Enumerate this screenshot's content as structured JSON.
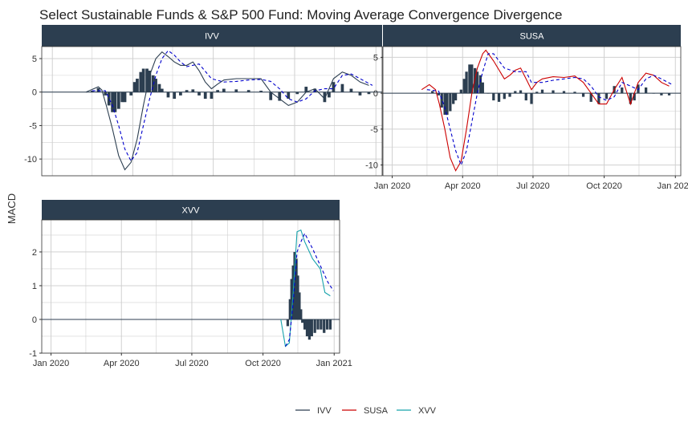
{
  "chart_data": {
    "type": "line",
    "title": "Select Sustainable Funds & S&P 500 Fund: Moving Average Convergence Divergence",
    "ylabel": "MACD",
    "xlabel": "",
    "x_ticks": [
      "Jan 2020",
      "Apr 2020",
      "Jul 2020",
      "Oct 2020",
      "Jan 2021"
    ],
    "grid": true,
    "legend": {
      "position": "bottom",
      "entries": [
        {
          "name": "IVV",
          "color": "#2c3e50"
        },
        {
          "name": "SUSA",
          "color": "#cc0000"
        },
        {
          "name": "XVV",
          "color": "#18a3ac"
        }
      ]
    },
    "colors": {
      "strip": "#2c3e50",
      "signal": "#0000cc",
      "histogram": "#2c3e50",
      "grid": "#d0d0d0",
      "zero": "#2c3e50"
    },
    "panels": [
      {
        "name": "IVV",
        "color": "#2c3e50",
        "y_ticks": [
          -10,
          -5,
          0,
          5
        ],
        "ylim": [
          -12.5,
          6.8
        ],
        "macd": [
          [
            "2020-02-08",
            0
          ],
          [
            "2020-02-15",
            0.4
          ],
          [
            "2020-02-22",
            0.8
          ],
          [
            "2020-02-26",
            0.3
          ],
          [
            "2020-03-02",
            -2
          ],
          [
            "2020-03-09",
            -5.5
          ],
          [
            "2020-03-16",
            -9.5
          ],
          [
            "2020-03-23",
            -11.6
          ],
          [
            "2020-03-30",
            -10.5
          ],
          [
            "2020-04-06",
            -7
          ],
          [
            "2020-04-13",
            -2
          ],
          [
            "2020-04-20",
            2.5
          ],
          [
            "2020-04-27",
            5
          ],
          [
            "2020-05-04",
            6
          ],
          [
            "2020-05-11",
            5.3
          ],
          [
            "2020-05-18",
            4.5
          ],
          [
            "2020-05-25",
            4
          ],
          [
            "2020-06-01",
            4
          ],
          [
            "2020-06-08",
            4.5
          ],
          [
            "2020-06-15",
            3.2
          ],
          [
            "2020-06-22",
            1.5
          ],
          [
            "2020-06-29",
            0.5
          ],
          [
            "2020-07-06",
            1.2
          ],
          [
            "2020-07-13",
            1.8
          ],
          [
            "2020-07-27",
            2
          ],
          [
            "2020-08-10",
            2
          ],
          [
            "2020-08-24",
            2
          ],
          [
            "2020-09-04",
            0
          ],
          [
            "2020-09-14",
            -1
          ],
          [
            "2020-09-24",
            -2
          ],
          [
            "2020-10-04",
            -1.5
          ],
          [
            "2020-10-14",
            0
          ],
          [
            "2020-10-24",
            0.5
          ],
          [
            "2020-11-04",
            -1
          ],
          [
            "2020-11-14",
            2
          ],
          [
            "2020-11-24",
            3
          ],
          [
            "2020-12-04",
            2.5
          ],
          [
            "2020-12-14",
            1.5
          ],
          [
            "2020-12-24",
            1
          ]
        ],
        "signal": [
          [
            "2020-02-15",
            0.2
          ],
          [
            "2020-03-01",
            0.2
          ],
          [
            "2020-03-09",
            -2
          ],
          [
            "2020-03-16",
            -5
          ],
          [
            "2020-03-23",
            -8.5
          ],
          [
            "2020-03-30",
            -10.3
          ],
          [
            "2020-04-06",
            -9
          ],
          [
            "2020-04-13",
            -5
          ],
          [
            "2020-04-20",
            -1
          ],
          [
            "2020-04-27",
            2.5
          ],
          [
            "2020-05-04",
            5
          ],
          [
            "2020-05-11",
            6.2
          ],
          [
            "2020-05-18",
            5.5
          ],
          [
            "2020-05-25",
            4.5
          ],
          [
            "2020-06-01",
            3.8
          ],
          [
            "2020-06-15",
            4.2
          ],
          [
            "2020-06-29",
            2
          ],
          [
            "2020-07-13",
            1.5
          ],
          [
            "2020-07-27",
            1.6
          ],
          [
            "2020-08-10",
            1.8
          ],
          [
            "2020-08-24",
            1.9
          ],
          [
            "2020-09-04",
            1.6
          ],
          [
            "2020-09-14",
            0.5
          ],
          [
            "2020-09-24",
            -1
          ],
          [
            "2020-10-04",
            -1.5
          ],
          [
            "2020-10-14",
            -1
          ],
          [
            "2020-10-24",
            0.2
          ],
          [
            "2020-11-04",
            0.5
          ],
          [
            "2020-11-14",
            0.5
          ],
          [
            "2020-11-24",
            2.5
          ],
          [
            "2020-12-04",
            2.7
          ],
          [
            "2020-12-14",
            2
          ],
          [
            "2020-12-28",
            1
          ]
        ],
        "histogram": [
          [
            "2020-02-15",
            0.2
          ],
          [
            "2020-02-22",
            0.6
          ],
          [
            "2020-03-01",
            -0.5
          ],
          [
            "2020-03-05",
            -2
          ],
          [
            "2020-03-09",
            -3
          ],
          [
            "2020-03-12",
            -3
          ],
          [
            "2020-03-16",
            -2.5
          ],
          [
            "2020-03-20",
            -1.5
          ],
          [
            "2020-03-23",
            -1.5
          ],
          [
            "2020-03-30",
            -0.5
          ],
          [
            "2020-04-03",
            1.5
          ],
          [
            "2020-04-06",
            2
          ],
          [
            "2020-04-10",
            3
          ],
          [
            "2020-04-13",
            3.5
          ],
          [
            "2020-04-17",
            3.5
          ],
          [
            "2020-04-20",
            3.2
          ],
          [
            "2020-04-24",
            2.5
          ],
          [
            "2020-04-27",
            2
          ],
          [
            "2020-05-01",
            1.2
          ],
          [
            "2020-05-04",
            0.5
          ],
          [
            "2020-05-11",
            -0.8
          ],
          [
            "2020-05-18",
            -1
          ],
          [
            "2020-05-25",
            -0.5
          ],
          [
            "2020-06-01",
            0.3
          ],
          [
            "2020-06-08",
            0.4
          ],
          [
            "2020-06-15",
            -0.5
          ],
          [
            "2020-06-22",
            -1
          ],
          [
            "2020-06-29",
            -1
          ],
          [
            "2020-07-06",
            0.3
          ],
          [
            "2020-07-13",
            0.5
          ],
          [
            "2020-07-27",
            0.4
          ],
          [
            "2020-08-10",
            0.3
          ],
          [
            "2020-08-24",
            0.2
          ],
          [
            "2020-09-04",
            -1.2
          ],
          [
            "2020-09-14",
            -1.3
          ],
          [
            "2020-09-24",
            -1
          ],
          [
            "2020-10-04",
            -0.3
          ],
          [
            "2020-10-14",
            0.8
          ],
          [
            "2020-10-24",
            0.5
          ],
          [
            "2020-11-04",
            -1.5
          ],
          [
            "2020-11-09",
            -0.8
          ],
          [
            "2020-11-14",
            1.5
          ],
          [
            "2020-11-24",
            1.2
          ],
          [
            "2020-12-04",
            0.5
          ],
          [
            "2020-12-14",
            -0.5
          ],
          [
            "2020-12-24",
            -0.3
          ]
        ]
      },
      {
        "name": "SUSA",
        "color": "#cc0000",
        "y_ticks": [
          -10,
          -5,
          0,
          5
        ],
        "ylim": [
          -11.5,
          6.5
        ],
        "macd": [
          [
            "2020-02-08",
            0.5
          ],
          [
            "2020-02-18",
            1.2
          ],
          [
            "2020-02-26",
            0.5
          ],
          [
            "2020-03-02",
            -1.5
          ],
          [
            "2020-03-09",
            -5
          ],
          [
            "2020-03-16",
            -9
          ],
          [
            "2020-03-23",
            -10.8
          ],
          [
            "2020-03-30",
            -9.5
          ],
          [
            "2020-04-06",
            -5
          ],
          [
            "2020-04-13",
            0
          ],
          [
            "2020-04-20",
            3.5
          ],
          [
            "2020-04-27",
            5.5
          ],
          [
            "2020-05-01",
            6
          ],
          [
            "2020-05-11",
            4.5
          ],
          [
            "2020-05-25",
            2
          ],
          [
            "2020-06-01",
            2.5
          ],
          [
            "2020-06-08",
            3.2
          ],
          [
            "2020-06-15",
            3.5
          ],
          [
            "2020-06-22",
            2
          ],
          [
            "2020-06-29",
            0.5
          ],
          [
            "2020-07-06",
            1.5
          ],
          [
            "2020-07-13",
            2
          ],
          [
            "2020-07-27",
            2.3
          ],
          [
            "2020-08-10",
            2.2
          ],
          [
            "2020-08-24",
            2.4
          ],
          [
            "2020-09-04",
            1.5
          ],
          [
            "2020-09-14",
            0
          ],
          [
            "2020-09-24",
            -1.5
          ],
          [
            "2020-10-04",
            -1.5
          ],
          [
            "2020-10-14",
            0.5
          ],
          [
            "2020-10-24",
            2.2
          ],
          [
            "2020-11-04",
            -1.5
          ],
          [
            "2020-11-14",
            1.5
          ],
          [
            "2020-11-24",
            2.8
          ],
          [
            "2020-12-04",
            2.5
          ],
          [
            "2020-12-14",
            1.5
          ],
          [
            "2020-12-24",
            1
          ]
        ],
        "signal": [
          [
            "2020-02-15",
            0.5
          ],
          [
            "2020-03-01",
            0.3
          ],
          [
            "2020-03-09",
            -2
          ],
          [
            "2020-03-16",
            -5
          ],
          [
            "2020-03-23",
            -8
          ],
          [
            "2020-03-30",
            -10
          ],
          [
            "2020-04-06",
            -8
          ],
          [
            "2020-04-13",
            -4
          ],
          [
            "2020-04-20",
            0
          ],
          [
            "2020-04-27",
            3
          ],
          [
            "2020-05-04",
            5.5
          ],
          [
            "2020-05-11",
            5.5
          ],
          [
            "2020-05-25",
            3.5
          ],
          [
            "2020-06-08",
            3
          ],
          [
            "2020-06-22",
            3
          ],
          [
            "2020-06-29",
            1.5
          ],
          [
            "2020-07-13",
            1.5
          ],
          [
            "2020-07-27",
            1.8
          ],
          [
            "2020-08-10",
            2
          ],
          [
            "2020-08-24",
            2.2
          ],
          [
            "2020-09-04",
            2
          ],
          [
            "2020-09-14",
            1
          ],
          [
            "2020-09-24",
            -0.5
          ],
          [
            "2020-10-04",
            -1
          ],
          [
            "2020-10-14",
            -0.5
          ],
          [
            "2020-10-24",
            1.5
          ],
          [
            "2020-11-04",
            1
          ],
          [
            "2020-11-14",
            0.5
          ],
          [
            "2020-11-24",
            2
          ],
          [
            "2020-12-04",
            2.5
          ],
          [
            "2020-12-14",
            2
          ],
          [
            "2020-12-28",
            1.2
          ]
        ],
        "histogram": [
          [
            "2020-02-22",
            0.3
          ],
          [
            "2020-03-01",
            -0.3
          ],
          [
            "2020-03-05",
            -2
          ],
          [
            "2020-03-09",
            -3
          ],
          [
            "2020-03-12",
            -3
          ],
          [
            "2020-03-16",
            -2.5
          ],
          [
            "2020-03-20",
            -1.5
          ],
          [
            "2020-03-23",
            -1
          ],
          [
            "2020-03-30",
            0.5
          ],
          [
            "2020-04-03",
            2
          ],
          [
            "2020-04-06",
            3
          ],
          [
            "2020-04-10",
            4
          ],
          [
            "2020-04-13",
            4
          ],
          [
            "2020-04-17",
            3.5
          ],
          [
            "2020-04-20",
            3
          ],
          [
            "2020-04-24",
            2.5
          ],
          [
            "2020-04-27",
            1.5
          ],
          [
            "2020-05-04",
            0
          ],
          [
            "2020-05-11",
            -1
          ],
          [
            "2020-05-18",
            -1.2
          ],
          [
            "2020-05-25",
            -0.8
          ],
          [
            "2020-06-01",
            -0.5
          ],
          [
            "2020-06-08",
            0.3
          ],
          [
            "2020-06-15",
            0.4
          ],
          [
            "2020-06-22",
            -1
          ],
          [
            "2020-06-29",
            -1.5
          ],
          [
            "2020-07-06",
            0.2
          ],
          [
            "2020-07-13",
            0.5
          ],
          [
            "2020-07-27",
            0.4
          ],
          [
            "2020-08-10",
            0.3
          ],
          [
            "2020-08-24",
            0.2
          ],
          [
            "2020-09-04",
            -0.5
          ],
          [
            "2020-09-14",
            -1.2
          ],
          [
            "2020-09-24",
            -1.5
          ],
          [
            "2020-10-04",
            -0.8
          ],
          [
            "2020-10-14",
            1
          ],
          [
            "2020-10-24",
            0.8
          ],
          [
            "2020-11-04",
            -1.5
          ],
          [
            "2020-11-09",
            -1
          ],
          [
            "2020-11-14",
            1.2
          ],
          [
            "2020-11-24",
            0.8
          ],
          [
            "2020-12-04",
            0
          ],
          [
            "2020-12-14",
            -0.3
          ],
          [
            "2020-12-24",
            -0.3
          ]
        ]
      },
      {
        "name": "XVV",
        "color": "#18a3ac",
        "y_ticks": [
          -1,
          0,
          1,
          2
        ],
        "ylim": [
          -1,
          2.95
        ],
        "macd": [
          [
            "2020-10-24",
            0
          ],
          [
            "2020-10-30",
            -0.8
          ],
          [
            "2020-11-04",
            -0.7
          ],
          [
            "2020-11-09",
            0.8
          ],
          [
            "2020-11-14",
            2.6
          ],
          [
            "2020-11-19",
            2.65
          ],
          [
            "2020-11-24",
            2.3
          ],
          [
            "2020-12-04",
            1.8
          ],
          [
            "2020-12-14",
            1.5
          ],
          [
            "2020-12-20",
            0.8
          ],
          [
            "2020-12-27",
            0.7
          ]
        ],
        "signal": [
          [
            "2020-10-30",
            -0.8
          ],
          [
            "2020-11-04",
            -0.6
          ],
          [
            "2020-11-09",
            0.5
          ],
          [
            "2020-11-14",
            2
          ],
          [
            "2020-11-19",
            2.3
          ],
          [
            "2020-11-24",
            2.55
          ],
          [
            "2020-12-04",
            2.1
          ],
          [
            "2020-12-14",
            1.6
          ],
          [
            "2020-12-24",
            1.1
          ],
          [
            "2020-12-31",
            0.85
          ]
        ],
        "histogram": [
          [
            "2020-11-02",
            -0.2
          ],
          [
            "2020-11-05",
            0.6
          ],
          [
            "2020-11-07",
            1.2
          ],
          [
            "2020-11-09",
            1.6
          ],
          [
            "2020-11-11",
            2
          ],
          [
            "2020-11-13",
            1.8
          ],
          [
            "2020-11-15",
            1.3
          ],
          [
            "2020-11-17",
            0.8
          ],
          [
            "2020-11-19",
            0.3
          ],
          [
            "2020-11-21",
            -0.1
          ],
          [
            "2020-11-24",
            -0.3
          ],
          [
            "2020-11-27",
            -0.5
          ],
          [
            "2020-11-30",
            -0.6
          ],
          [
            "2020-12-03",
            -0.5
          ],
          [
            "2020-12-07",
            -0.4
          ],
          [
            "2020-12-11",
            -0.3
          ],
          [
            "2020-12-15",
            -0.3
          ],
          [
            "2020-12-19",
            -0.4
          ],
          [
            "2020-12-23",
            -0.3
          ],
          [
            "2020-12-27",
            -0.3
          ]
        ]
      }
    ]
  }
}
